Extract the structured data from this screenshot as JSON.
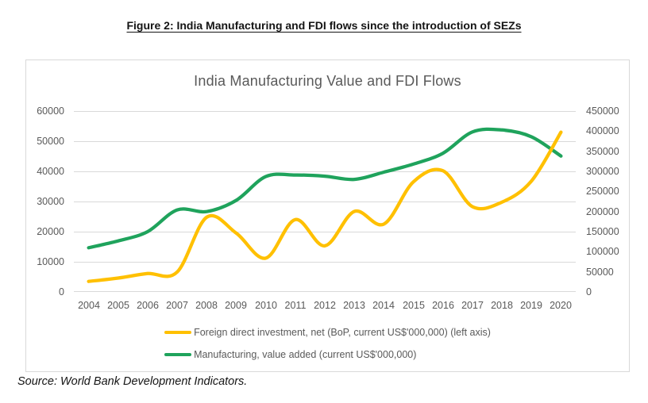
{
  "figure": {
    "caption": "Figure 2: India Manufacturing and FDI flows since the introduction of SEZs",
    "source": "Source: World Bank Development Indicators."
  },
  "chart_data": {
    "type": "line",
    "title": "India Manufacturing Value and FDI Flows",
    "smooth": true,
    "grid": true,
    "legend_position": "bottom",
    "categories": [
      "2004",
      "2005",
      "2006",
      "2007",
      "2008",
      "2009",
      "2010",
      "2011",
      "2012",
      "2013",
      "2014",
      "2015",
      "2016",
      "2017",
      "2018",
      "2019",
      "2020"
    ],
    "series": [
      {
        "name": "Foreign direct investment, net (BoP, current US$'000,000) (left axis)",
        "axis": "left",
        "color": "#FFC000",
        "values": [
          3500,
          4600,
          6100,
          6600,
          24800,
          19500,
          11200,
          24000,
          15300,
          26700,
          22500,
          36500,
          40200,
          28300,
          29800,
          36800,
          53000
        ]
      },
      {
        "name": "Manufacturing, value added (current US$'000,000)",
        "axis": "right",
        "color": "#1FA35C",
        "values": [
          110000,
          127000,
          150000,
          204000,
          200000,
          228000,
          287000,
          291000,
          288000,
          280000,
          298000,
          318000,
          345000,
          398000,
          403000,
          386000,
          338000
        ]
      }
    ],
    "left_axis": {
      "min": 0,
      "max": 60000,
      "step": 10000,
      "ticks": [
        "0",
        "10000",
        "20000",
        "30000",
        "40000",
        "50000",
        "60000"
      ]
    },
    "right_axis": {
      "min": 0,
      "max": 450000,
      "step": 50000,
      "ticks": [
        "0",
        "50000",
        "100000",
        "150000",
        "200000",
        "250000",
        "300000",
        "350000",
        "400000",
        "450000"
      ]
    },
    "colors": {
      "gridline": "#d9d9d9",
      "axis_text": "#595959",
      "title_text": "#595959",
      "frame_border": "#d9d9d9"
    }
  }
}
